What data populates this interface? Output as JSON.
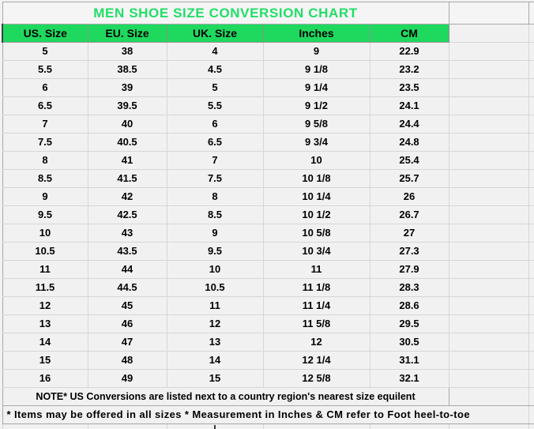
{
  "page": {
    "title": "MEN SHOE SIZE CONVERSION CHART"
  },
  "table": {
    "columns": [
      "US. Size",
      "EU. Size",
      "UK. Size",
      "Inches",
      "CM"
    ],
    "rows": [
      [
        "5",
        "38",
        "4",
        "9",
        "22.9"
      ],
      [
        "5.5",
        "38.5",
        "4.5",
        "9 1/8",
        "23.2"
      ],
      [
        "6",
        "39",
        "5",
        "9 1/4",
        "23.5"
      ],
      [
        "6.5",
        "39.5",
        "5.5",
        "9 1/2",
        "24.1"
      ],
      [
        "7",
        "40",
        "6",
        "9 5/8",
        "24.4"
      ],
      [
        "7.5",
        "40.5",
        "6.5",
        "9 3/4",
        "24.8"
      ],
      [
        "8",
        "41",
        "7",
        "10",
        "25.4"
      ],
      [
        "8.5",
        "41.5",
        "7.5",
        "10 1/8",
        "25.7"
      ],
      [
        "9",
        "42",
        "8",
        "10 1/4",
        "26"
      ],
      [
        "9.5",
        "42.5",
        "8.5",
        "10 1/2",
        "26.7"
      ],
      [
        "10",
        "43",
        "9",
        "10 5/8",
        "27"
      ],
      [
        "10.5",
        "43.5",
        "9.5",
        "10 3/4",
        "27.3"
      ],
      [
        "11",
        "44",
        "10",
        "11",
        "27.9"
      ],
      [
        "11.5",
        "44.5",
        "10.5",
        "11 1/8",
        "28.3"
      ],
      [
        "12",
        "45",
        "11",
        "11 1/4",
        "28.6"
      ],
      [
        "13",
        "46",
        "12",
        "11 5/8",
        "29.5"
      ],
      [
        "14",
        "47",
        "13",
        "12",
        "30.5"
      ],
      [
        "15",
        "48",
        "14",
        "12 1/4",
        "31.1"
      ],
      [
        "16",
        "49",
        "15",
        "12 5/8",
        "32.1"
      ]
    ],
    "notes": [
      "NOTE* US Conversions are listed next to a country region's nearest size equilent",
      "* Items may be offered in all sizes * Measurement in Inches & CM refer to Foot heel-to-toe"
    ]
  },
  "colors": {
    "header_bg": "#1fd95f",
    "title_text": "#21de67",
    "cell_bg": "#f1f1f1",
    "gridline": "#d6d6d6"
  }
}
